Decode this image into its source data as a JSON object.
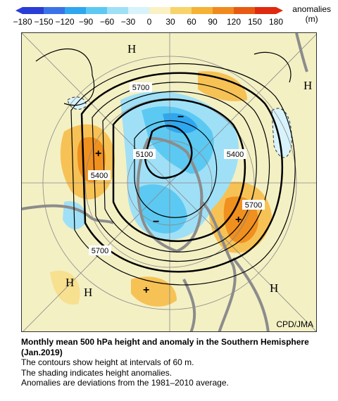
{
  "colorbar": {
    "unit_title": "anomalies",
    "unit": "(m)",
    "ticks": [
      "-180",
      "-150",
      "-120",
      "-90",
      "-60",
      "-30",
      "0",
      "30",
      "60",
      "90",
      "120",
      "150",
      "180"
    ],
    "colors": [
      "#2a3dd6",
      "#3a72e8",
      "#2fa7ef",
      "#5cc9f2",
      "#9fe0f7",
      "#d8f3fb",
      "#fbf1c4",
      "#f8d36a",
      "#f5b234",
      "#f08a1e",
      "#e85a12",
      "#e02a10"
    ]
  },
  "map": {
    "labels": {
      "contour_5100": "5100",
      "contour_5400_right": "5400",
      "contour_5400_left": "5400",
      "contour_5700_top": "5700",
      "contour_5700_right": "5700",
      "contour_5700_bottom": "5700",
      "high_top": "H",
      "high_right": "H",
      "high_left1": "H",
      "high_left2": "H",
      "high_bottom_right": "H",
      "plus": "+",
      "minus": "−",
      "credit": "CPD/JMA"
    }
  },
  "caption": {
    "title": "Monthly mean 500 hPa height and anomaly in the Southern Hemisphere (Jan.2019)",
    "line1": "The contours show height at intervals of 60 m.",
    "line2": "The shading indicates height anomalies.",
    "line3": "Anomalies are deviations from the 1981–2010 average."
  }
}
